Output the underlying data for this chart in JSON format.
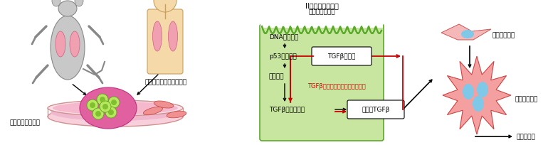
{
  "bg_color": "#ffffff",
  "cell_box_fill": "#c8e6a0",
  "cell_box_edge": "#5aaa2a",
  "cell_label1": "II型肺胞上皮細胞",
  "cell_label2": "（組織幹細胞）",
  "step_texts": [
    "DNAダメージ",
    "p53シグナル",
    "細胞老化",
    "TGFβ関連遺伝子"
  ],
  "receptor_label": "TGFβ受容体",
  "active_label": "活性化TGFβ",
  "feedback_label": "TGFβポジティブフィードバック",
  "label_organoid": "肺胞オルガノイド",
  "label_reporter": "レポーター肺線維芽細胞",
  "label_lung_fib": "肺線維芽細胞",
  "label_myo_fib": "筋線維芽細胞",
  "label_fibrosis": "肺の線維化",
  "arrow_color": "#000000",
  "red_color": "#cc0000"
}
